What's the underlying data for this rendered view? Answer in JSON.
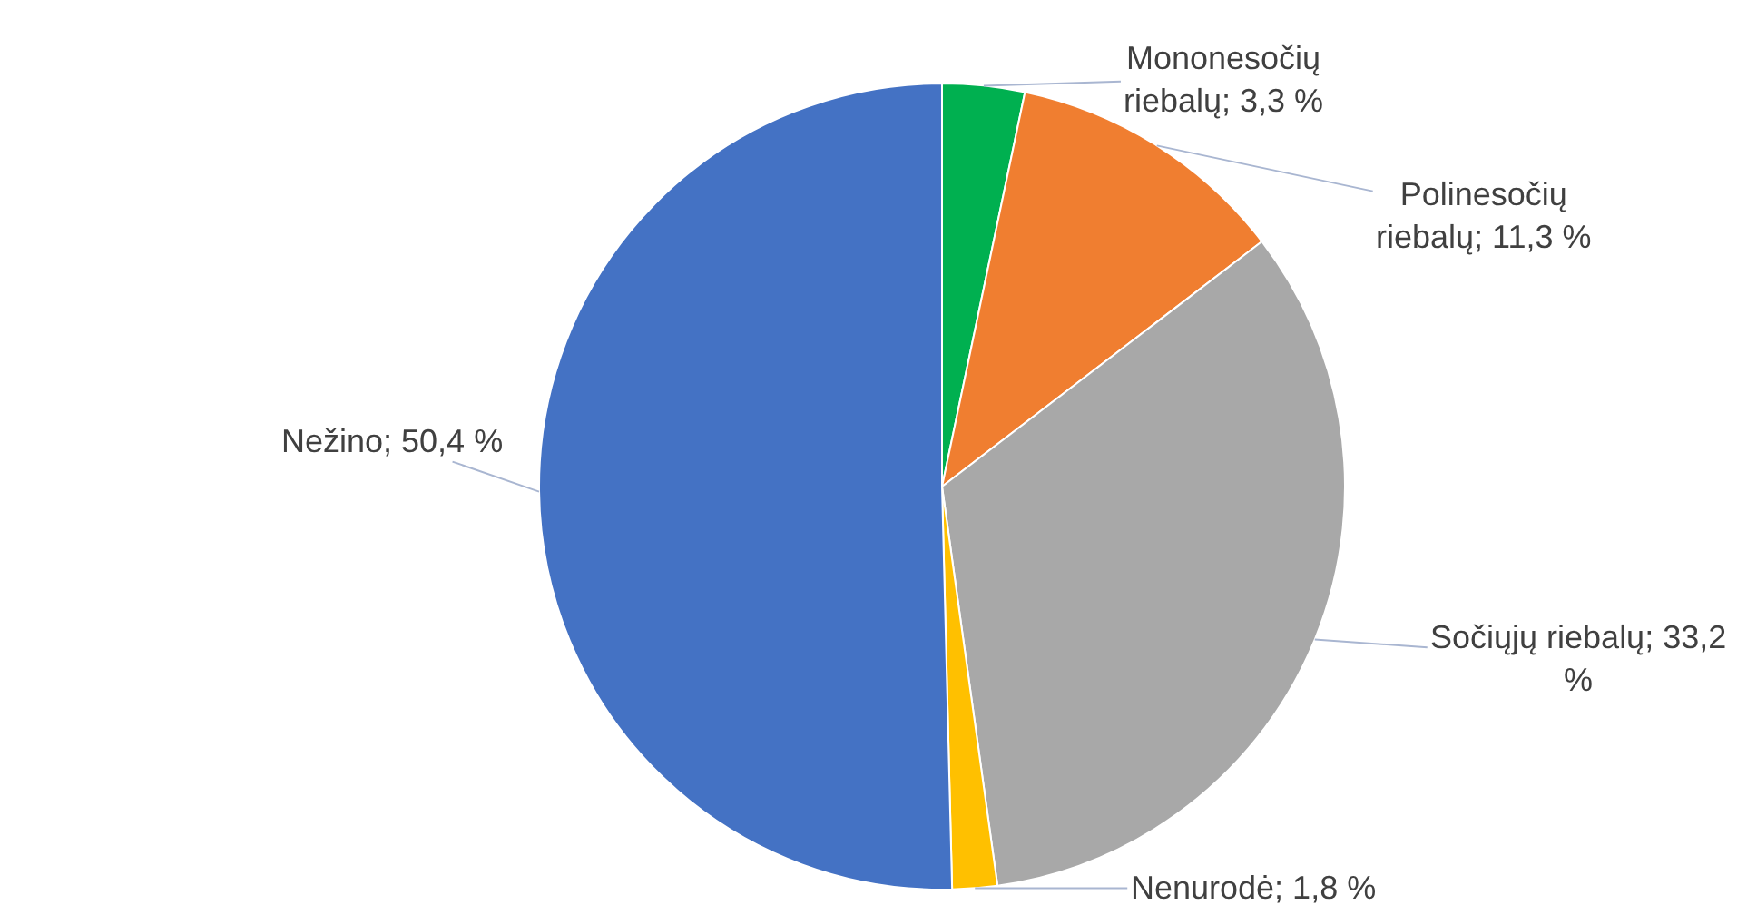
{
  "chart_data": {
    "type": "pie",
    "categories": [
      "Mononesočių riebalų",
      "Polinesočių riebalų",
      "Sočiųjų riebalų",
      "Nenurodė",
      "Nežino"
    ],
    "values": [
      3.3,
      11.3,
      33.2,
      1.8,
      50.4
    ],
    "colors": [
      "#00b050",
      "#f07e30",
      "#a8a8a8",
      "#ffc000",
      "#4472c4"
    ],
    "value_labels": [
      "3,3 %",
      "11,3 %",
      "33,2 %",
      "1,8 %",
      "50,4 %"
    ],
    "legend": false
  }
}
